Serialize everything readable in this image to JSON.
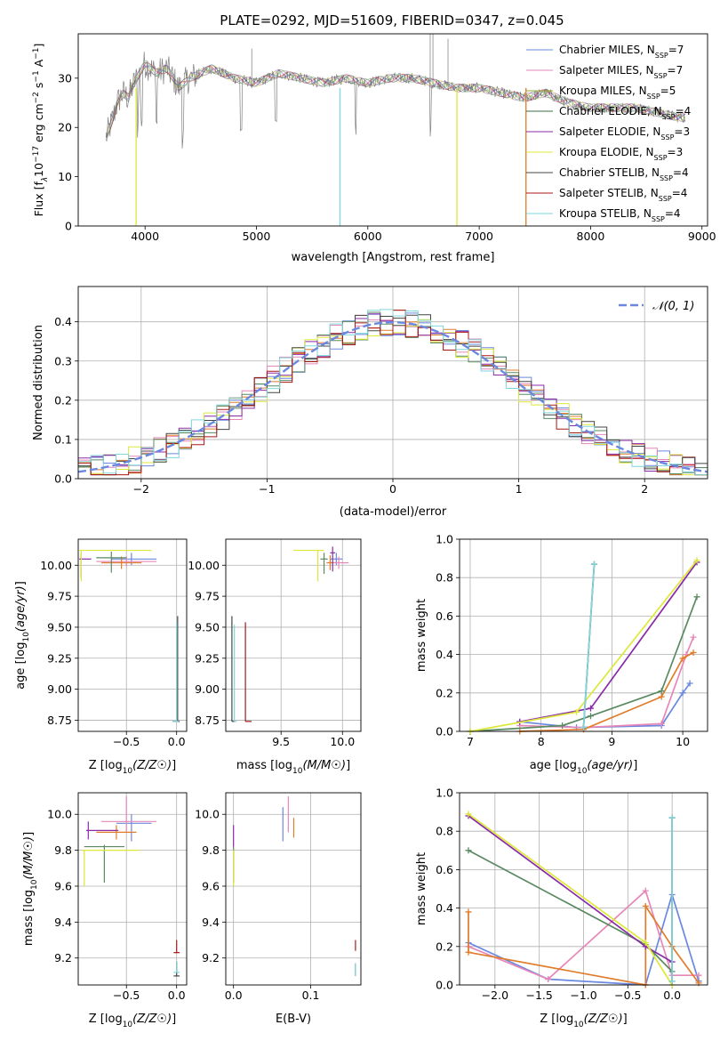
{
  "title": "PLATE=0292, MJD=51609, FIBERID=0347, z=0.045",
  "chart_data": [
    {
      "id": "spectrum",
      "type": "line",
      "title": "PLATE=0292, MJD=51609, FIBERID=0347, z=0.045",
      "xlabel": "wavelength [Angstrom, rest frame]",
      "ylabel": "Flux [f_λ 10^-17 erg cm^-2 s^-1 A^-1]",
      "xlim": [
        3400,
        9050
      ],
      "ylim": [
        0,
        39
      ],
      "xticks": [
        4000,
        5000,
        6000,
        7000,
        8000,
        9000
      ],
      "yticks": [
        0,
        10,
        20,
        30
      ],
      "grid": false,
      "legend_position": "top-right",
      "data_color": "#808080",
      "x": [
        3650,
        3700,
        3750,
        3800,
        3850,
        3900,
        3950,
        4000,
        4100,
        4200,
        4300,
        4400,
        4500,
        4600,
        4800,
        5000,
        5200,
        5400,
        5600,
        5800,
        6000,
        6200,
        6400,
        6600,
        6800,
        7000,
        7200,
        7400,
        7600,
        7800,
        8000,
        8200,
        8400,
        8600,
        8800
      ],
      "y": [
        18,
        21,
        25,
        27,
        26,
        29,
        31,
        33,
        31,
        32,
        28,
        30,
        31,
        32,
        30,
        29,
        31,
        30,
        29,
        30,
        29,
        30,
        30,
        29,
        28,
        28,
        27,
        26,
        27,
        25,
        24,
        24,
        24,
        23,
        22
      ],
      "series": [
        {
          "label_main": "Chabrier MILES, N",
          "label_sub": "SSP",
          "label_tail": "=7",
          "color": "#6a88e0"
        },
        {
          "label_main": "Salpeter MILES, N",
          "label_sub": "SSP",
          "label_tail": "=7",
          "color": "#e687b8"
        },
        {
          "label_main": "Kroupa MILES, N",
          "label_sub": "SSP",
          "label_tail": "=5",
          "color": "#9aa630"
        },
        {
          "label_main": "Chabrier ELODIE, N",
          "label_sub": "SSP",
          "label_tail": "=4",
          "color": "#3d6b4a"
        },
        {
          "label_main": "Salpeter ELODIE, N",
          "label_sub": "SSP",
          "label_tail": "=3",
          "color": "#8a2ba8"
        },
        {
          "label_main": "Kroupa ELODIE, N",
          "label_sub": "SSP",
          "label_tail": "=3",
          "color": "#dde83a"
        },
        {
          "label_main": "Chabrier STELIB, N",
          "label_sub": "SSP",
          "label_tail": "=4",
          "color": "#444444"
        },
        {
          "label_main": "Salpeter STELIB, N",
          "label_sub": "SSP",
          "label_tail": "=4",
          "color": "#a81818"
        },
        {
          "label_main": "Kroupa STELIB, N",
          "label_sub": "SSP",
          "label_tail": "=4",
          "color": "#7fd6dc"
        }
      ],
      "ylabel_parts": {
        "a": "Flux [f",
        "sub": "λ",
        "b": "10",
        "sup1": "−17",
        "c": " erg cm",
        "sup2": "−2",
        "d": " s",
        "sup3": "−1",
        "e": " A",
        "sup4": "−1",
        "f": "]"
      }
    },
    {
      "id": "residuals",
      "type": "step",
      "xlabel": "(data-model)/error",
      "ylabel": "Normed distribution",
      "xlim": [
        -2.5,
        2.5
      ],
      "ylim": [
        0,
        0.49
      ],
      "xticks": [
        -2,
        -1,
        0,
        1,
        2
      ],
      "yticks": [
        0.0,
        0.1,
        0.2,
        0.3,
        0.4
      ],
      "grid": true,
      "legend_position": "top-right",
      "legend_label": "𝒩(0, 1)",
      "normal_color": "#6a88e0",
      "bin_width": 0.1
    },
    {
      "id": "age_vs_Z",
      "type": "errorbar",
      "xlabel": "Z [log10(Z/Z☉)]",
      "ylabel": "age  [log10(age/yr)]",
      "xlim": [
        -0.98,
        0.1
      ],
      "ylim": [
        8.66,
        10.21
      ],
      "xticks": [
        -0.5,
        0.0
      ],
      "yticks": [
        8.75,
        9.0,
        9.25,
        9.5,
        9.75,
        10.0
      ],
      "grid": true,
      "points": [
        {
          "x": -0.45,
          "y": 10.05,
          "xerr": [
            0.2,
            0.25
          ],
          "yerr": [
            0.05,
            0.05
          ],
          "color": "#6a88e0"
        },
        {
          "x": -0.5,
          "y": 10.03,
          "xerr": [
            0.3,
            0.3
          ],
          "yerr": [
            0.04,
            0.04
          ],
          "color": "#e687b8"
        },
        {
          "x": -0.55,
          "y": 10.02,
          "xerr": [
            0.2,
            0.2
          ],
          "yerr": [
            0.05,
            0.05
          ],
          "color": "#e07c2a"
        },
        {
          "x": -0.65,
          "y": 10.06,
          "xerr": [
            0.15,
            0.15
          ],
          "yerr": [
            0.12,
            0.05
          ],
          "color": "#5a8a62"
        },
        {
          "x": -0.95,
          "y": 10.05,
          "xerr": [
            0.02,
            0.1
          ],
          "yerr": [
            0.15,
            0.05
          ],
          "color": "#8a2ba8"
        },
        {
          "x": -0.95,
          "y": 10.12,
          "xerr": [
            0.02,
            0.7
          ],
          "yerr": [
            0.25,
            0.0
          ],
          "color": "#dde83a"
        },
        {
          "x": 0.01,
          "y": 8.74,
          "xerr": [
            0.05,
            0.02
          ],
          "yerr": [
            0.0,
            0.85
          ],
          "color": "#444444"
        },
        {
          "x": 0.0,
          "y": 8.74,
          "xerr": [
            0.04,
            0.02
          ],
          "yerr": [
            0.0,
            0.8
          ],
          "color": "#7fd6dc"
        }
      ]
    },
    {
      "id": "age_vs_mass",
      "type": "errorbar",
      "xlabel": "mass [log10(M/M☉)]",
      "xlim": [
        9.05,
        10.15
      ],
      "ylim": [
        8.66,
        10.21
      ],
      "xticks": [
        9.5,
        10.0
      ],
      "yticks": [
        8.75,
        9.0,
        9.25,
        9.5,
        9.75,
        10.0
      ],
      "grid": true,
      "points": [
        {
          "x": 9.95,
          "y": 10.05,
          "xerr": [
            0.05,
            0.05
          ],
          "yerr": [
            0.05,
            0.05
          ],
          "color": "#6a88e0"
        },
        {
          "x": 9.97,
          "y": 10.02,
          "xerr": [
            0.08,
            0.08
          ],
          "yerr": [
            0.05,
            0.05
          ],
          "color": "#e687b8"
        },
        {
          "x": 9.9,
          "y": 10.02,
          "xerr": [
            0.03,
            0.03
          ],
          "yerr": [
            0.06,
            0.06
          ],
          "color": "#e07c2a"
        },
        {
          "x": 9.85,
          "y": 10.05,
          "xerr": [
            0.03,
            0.03
          ],
          "yerr": [
            0.12,
            0.05
          ],
          "color": "#5a8a62"
        },
        {
          "x": 9.92,
          "y": 10.1,
          "xerr": [
            0.02,
            0.02
          ],
          "yerr": [
            0.15,
            0.05
          ],
          "color": "#8a2ba8"
        },
        {
          "x": 9.8,
          "y": 10.12,
          "xerr": [
            0.2,
            0.05
          ],
          "yerr": [
            0.25,
            0.0
          ],
          "color": "#dde83a"
        },
        {
          "x": 9.1,
          "y": 8.74,
          "xerr": [
            0.0,
            0.02
          ],
          "yerr": [
            0.0,
            0.85
          ],
          "color": "#444444"
        },
        {
          "x": 9.21,
          "y": 8.74,
          "xerr": [
            0.0,
            0.05
          ],
          "yerr": [
            0.0,
            0.8
          ],
          "color": "#a81818"
        },
        {
          "x": 9.12,
          "y": 8.74,
          "xerr": [
            0.0,
            0.02
          ],
          "yerr": [
            0.0,
            0.78
          ],
          "color": "#7fd6dc"
        }
      ]
    },
    {
      "id": "weight_vs_age",
      "type": "line",
      "xlabel": "age  [log10(age/yr)]",
      "ylabel": "mass weight",
      "xlim": [
        6.85,
        10.35
      ],
      "ylim": [
        0,
        1.0
      ],
      "xticks": [
        7,
        8,
        9,
        10
      ],
      "yticks": [
        0.0,
        0.2,
        0.4,
        0.6,
        0.8,
        1.0
      ],
      "grid": true,
      "series": [
        {
          "color": "#6a88e0",
          "x": [
            7.7,
            8.5,
            9.7,
            10.0,
            10.1
          ],
          "y": [
            0.05,
            0.02,
            0.03,
            0.2,
            0.25
          ]
        },
        {
          "color": "#e687b8",
          "x": [
            7.7,
            8.6,
            9.7,
            10.05,
            10.15
          ],
          "y": [
            0.03,
            0.02,
            0.04,
            0.4,
            0.49
          ]
        },
        {
          "color": "#e07c2a",
          "x": [
            7.7,
            8.6,
            9.7,
            10.0,
            10.15
          ],
          "y": [
            0.0,
            0.01,
            0.18,
            0.38,
            0.41
          ]
        },
        {
          "color": "#5a8a62",
          "x": [
            7.0,
            8.3,
            8.7,
            9.7,
            10.2
          ],
          "y": [
            0.0,
            0.03,
            0.08,
            0.21,
            0.7
          ]
        },
        {
          "color": "#8a2ba8",
          "x": [
            7.7,
            8.7,
            10.2
          ],
          "y": [
            0.05,
            0.12,
            0.88
          ]
        },
        {
          "color": "#dde83a",
          "x": [
            7.0,
            8.5,
            10.2
          ],
          "y": [
            0.0,
            0.1,
            0.89
          ]
        },
        {
          "color": "#444444",
          "x": [
            8.6,
            8.75
          ],
          "y": [
            0.02,
            0.87
          ]
        },
        {
          "color": "#7fd6dc",
          "x": [
            8.6,
            8.75
          ],
          "y": [
            0.02,
            0.87
          ]
        }
      ]
    },
    {
      "id": "mass_vs_Z",
      "type": "errorbar",
      "xlabel": "Z [log10(Z/Z☉)]",
      "ylabel": "mass [log10(M/M☉)]",
      "xlim": [
        -0.98,
        0.1
      ],
      "ylim": [
        9.05,
        10.12
      ],
      "xticks": [
        -0.5,
        0.0
      ],
      "yticks": [
        9.2,
        9.4,
        9.6,
        9.8,
        10.0
      ],
      "grid": true,
      "points": [
        {
          "x": -0.45,
          "y": 9.95,
          "xerr": [
            0.15,
            0.2
          ],
          "yerr": [
            0.1,
            0.05
          ],
          "color": "#6a88e0"
        },
        {
          "x": -0.5,
          "y": 9.96,
          "xerr": [
            0.25,
            0.3
          ],
          "yerr": [
            0.06,
            0.14
          ],
          "color": "#e687b8"
        },
        {
          "x": -0.6,
          "y": 9.9,
          "xerr": [
            0.2,
            0.2
          ],
          "yerr": [
            0.04,
            0.04
          ],
          "color": "#e07c2a"
        },
        {
          "x": -0.72,
          "y": 9.82,
          "xerr": [
            0.2,
            0.2
          ],
          "yerr": [
            0.2,
            0.01
          ],
          "color": "#5a8a62"
        },
        {
          "x": -0.88,
          "y": 9.91,
          "xerr": [
            0.02,
            0.3
          ],
          "yerr": [
            0.05,
            0.05
          ],
          "color": "#8a2ba8"
        },
        {
          "x": -0.92,
          "y": 9.8,
          "xerr": [
            0.02,
            0.55
          ],
          "yerr": [
            0.2,
            0.0
          ],
          "color": "#dde83a"
        },
        {
          "x": 0.0,
          "y": 9.1,
          "xerr": [
            0.03,
            0.03
          ],
          "yerr": [
            0.0,
            0.08
          ],
          "color": "#444444"
        },
        {
          "x": 0.0,
          "y": 9.23,
          "xerr": [
            0.03,
            0.03
          ],
          "yerr": [
            0.0,
            0.07
          ],
          "color": "#a81818"
        },
        {
          "x": 0.0,
          "y": 9.12,
          "xerr": [
            0.03,
            0.03
          ],
          "yerr": [
            0.0,
            0.06
          ],
          "color": "#7fd6dc"
        }
      ]
    },
    {
      "id": "mass_vs_ebv",
      "type": "errorbar",
      "xlabel": "E(B-V)",
      "xlim": [
        -0.01,
        0.165
      ],
      "ylim": [
        9.05,
        10.12
      ],
      "xticks": [
        0.0,
        0.1
      ],
      "yticks": [
        9.2,
        9.4,
        9.6,
        9.8,
        10.0
      ],
      "grid": true,
      "points": [
        {
          "x": 0.064,
          "y": 9.95,
          "yerr": [
            0.1,
            0.09
          ],
          "color": "#6a88e0"
        },
        {
          "x": 0.071,
          "y": 9.98,
          "yerr": [
            0.08,
            0.12
          ],
          "color": "#e687b8"
        },
        {
          "x": 0.078,
          "y": 9.92,
          "yerr": [
            0.05,
            0.06
          ],
          "color": "#e07c2a"
        },
        {
          "x": 0.0,
          "y": 9.82,
          "yerr": [
            0.2,
            0.0
          ],
          "color": "#5a8a62"
        },
        {
          "x": 0.0,
          "y": 9.88,
          "yerr": [
            0.06,
            0.06
          ],
          "color": "#8a2ba8"
        },
        {
          "x": 0.0,
          "y": 9.72,
          "yerr": [
            0.12,
            0.08
          ],
          "color": "#dde83a"
        },
        {
          "x": 0.158,
          "y": 9.12,
          "yerr": [
            0.02,
            0.05
          ],
          "color": "#444444"
        },
        {
          "x": 0.158,
          "y": 9.26,
          "yerr": [
            0.02,
            0.04
          ],
          "color": "#a81818"
        },
        {
          "x": 0.158,
          "y": 9.14,
          "yerr": [
            0.04,
            0.03
          ],
          "color": "#7fd6dc"
        }
      ]
    },
    {
      "id": "weight_vs_Z",
      "type": "line",
      "xlabel": "Z [log10(Z/Z☉)]",
      "ylabel": "mass weight",
      "xlim": [
        -2.4,
        0.4
      ],
      "ylim": [
        0,
        1.0
      ],
      "xticks": [
        -2.0,
        -1.5,
        -1.0,
        -0.5,
        0.0
      ],
      "grid": true,
      "yticks": [
        0.0,
        0.2,
        0.4,
        0.6,
        0.8,
        1.0
      ],
      "series": [
        {
          "color": "#6a88e0",
          "x": [
            -2.3,
            -1.4,
            -0.3,
            0.0,
            0.3
          ],
          "y": [
            0.22,
            0.03,
            0.0,
            0.47,
            0.02
          ]
        },
        {
          "color": "#e687b8",
          "x": [
            -2.3,
            -1.4,
            -0.3,
            0.0,
            0.3
          ],
          "y": [
            0.2,
            0.03,
            0.49,
            0.05,
            0.05
          ]
        },
        {
          "color": "#e07c2a",
          "x": [
            -2.3,
            -2.3,
            -0.3,
            -0.3,
            0.0,
            0.3
          ],
          "y": [
            0.38,
            0.17,
            0.0,
            0.41,
            0.2,
            0.01
          ]
        },
        {
          "color": "#5a8a62",
          "x": [
            -2.3,
            -0.3,
            0.0
          ],
          "y": [
            0.7,
            0.21,
            0.07
          ]
        },
        {
          "color": "#8a2ba8",
          "x": [
            -2.3,
            -0.3,
            0.0
          ],
          "y": [
            0.88,
            0.2,
            0.12
          ]
        },
        {
          "color": "#dde83a",
          "x": [
            -2.3,
            -0.3,
            0.0
          ],
          "y": [
            0.89,
            0.22,
            0.0
          ]
        },
        {
          "color": "#444444",
          "x": [
            0.0,
            0.0
          ],
          "y": [
            0.02,
            0.87
          ]
        },
        {
          "color": "#7fd6dc",
          "x": [
            0.0,
            0.0
          ],
          "y": [
            0.02,
            0.87
          ]
        }
      ]
    }
  ]
}
